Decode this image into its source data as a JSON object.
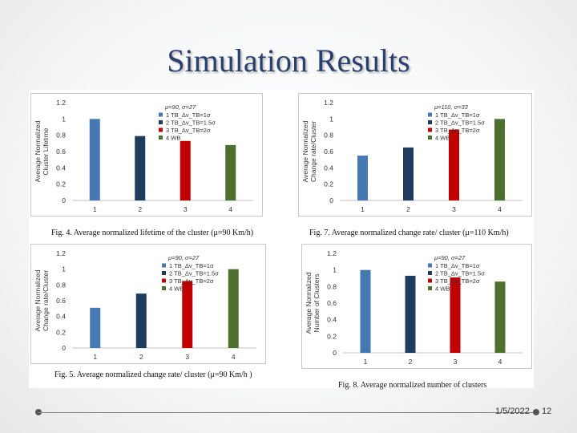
{
  "slide": {
    "title": "Simulation Results",
    "date": "1/5/2022",
    "page_number": "12"
  },
  "colors": {
    "title": "#2b3f6e",
    "series": [
      "#4679b2",
      "#1f3b5e",
      "#c00000",
      "#4f6f2e"
    ]
  },
  "chart_data": [
    {
      "type": "bar",
      "title": "μ=90, σ=27",
      "ylabel_lines": [
        "Average Normalized",
        "Cluster Lifetime"
      ],
      "categories": [
        "1",
        "2",
        "3",
        "4"
      ],
      "values": [
        1.0,
        0.79,
        0.73,
        0.68
      ],
      "ylim": [
        0,
        1.2
      ],
      "yticks": [
        "0",
        "0.2",
        "0.4",
        "0.6",
        "0.8",
        "1",
        "1.2"
      ],
      "legend": [
        "1 TB_Δv_TB=1σ",
        "2 TB_Δv_TB=1.5σ",
        "3 TB_Δv_TB=2σ",
        "4 WB"
      ],
      "caption": "Fig. 4. Average normalized lifetime of the cluster (μ=90 Km/h)"
    },
    {
      "type": "bar",
      "title": "μ=110, σ=33",
      "ylabel_lines": [
        "Average Normalized",
        "Change rate/Cluster"
      ],
      "categories": [
        "1",
        "2",
        "3",
        "4"
      ],
      "values": [
        0.55,
        0.65,
        0.87,
        1.0
      ],
      "ylim": [
        0,
        1.2
      ],
      "yticks": [
        "0",
        "0.2",
        "0.4",
        "0.6",
        "0.8",
        "1",
        "1.2"
      ],
      "legend": [
        "1 TB_Δv_TB=1σ",
        "2 TB_Δv_TB=1.5σ",
        "3 TB_Δv_TB=2σ",
        "4 WB"
      ],
      "caption": "Fig. 7. Average normalized change rate/ cluster (μ=110 Km/h)"
    },
    {
      "type": "bar",
      "title": "μ=90, σ=27",
      "ylabel_lines": [
        "Average Normalized",
        "Change rate/Cluster"
      ],
      "categories": [
        "1",
        "2",
        "3",
        "4"
      ],
      "values": [
        0.51,
        0.69,
        0.85,
        1.0
      ],
      "ylim": [
        0,
        1.2
      ],
      "yticks": [
        "0",
        "0.2",
        "0.4",
        "0.6",
        "0.8",
        "1",
        "1.2"
      ],
      "legend": [
        "1 TB_Δv_TB=1σ",
        "2 TB_Δv_TB=1.5σ",
        "3 TB_Δv_TB=2σ",
        "4 WB"
      ],
      "caption": "Fig. 5. Average normalized change rate/ cluster (μ=90 Km/h )"
    },
    {
      "type": "bar",
      "title": "μ=90, σ=27",
      "ylabel_lines": [
        "Average Normalized",
        "Number of Clusters"
      ],
      "categories": [
        "1",
        "2",
        "3",
        "4"
      ],
      "values": [
        1.0,
        0.93,
        0.91,
        0.86
      ],
      "ylim": [
        0,
        1.2
      ],
      "yticks": [
        "0",
        "0.2",
        "0.4",
        "0.6",
        "0.8",
        "1",
        "1.2"
      ],
      "legend": [
        "1 TB_Δv_TB=1σ",
        "2 TB_Δv_TB=1.5σ",
        "3 TB_Δv_TB=2σ",
        "4 WB"
      ],
      "caption": "Fig. 8. Average normalized number of clusters"
    }
  ]
}
